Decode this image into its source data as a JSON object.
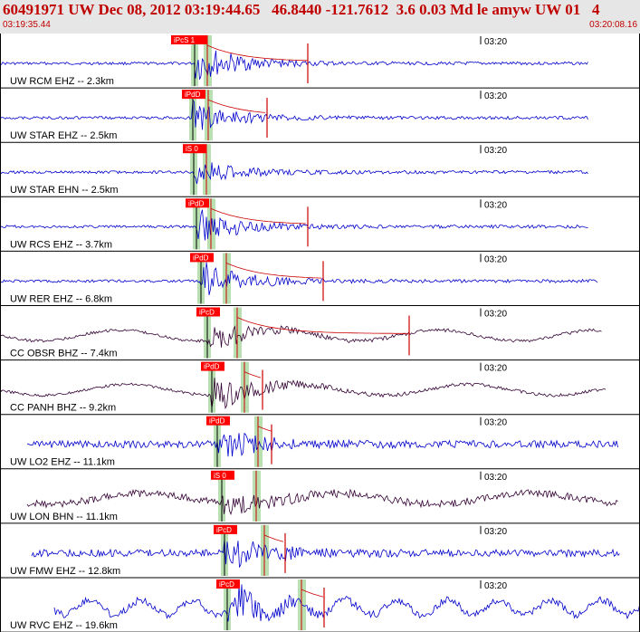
{
  "header": {
    "title": "60491971 UW Dec 08, 2012 03:19:44.65   46.8440 -121.7612  3.6 0.03 Md le amyw UW 01   4",
    "start_time": "03:19:35.44",
    "end_time": "03:20:08.16"
  },
  "colors": {
    "header_bg": "#e6e6e6",
    "header_text": "#c00000",
    "trace_short_period": "#0000cc",
    "trace_broadband": "#330033",
    "pick_box": "#ff0000",
    "window_band": "#b8e0b0",
    "coda_fit": "#cc0000"
  },
  "minute_label": "03:20",
  "traces": [
    {
      "label": "UW RCM EHZ -- 2.3km",
      "pick": "iPcS 1",
      "kind": "sp"
    },
    {
      "label": "UW STAR EHZ -- 2.5km",
      "pick": "iPdD",
      "kind": "sp"
    },
    {
      "label": "UW STAR EHN -- 2.5km",
      "pick": "iS 0",
      "kind": "sp"
    },
    {
      "label": "UW RCS EHZ -- 3.7km",
      "pick": "iPdD",
      "kind": "sp"
    },
    {
      "label": "UW RER EHZ -- 6.8km",
      "pick": "iPdD",
      "kind": "sp"
    },
    {
      "label": "CC OBSR BHZ -- 7.4km",
      "pick": "iPcD",
      "kind": "bb"
    },
    {
      "label": "CC PANH BHZ -- 9.2km",
      "pick": "iPdD",
      "kind": "bb"
    },
    {
      "label": "UW LO2 EHZ -- 11.1km",
      "pick": "iPdD",
      "kind": "sp"
    },
    {
      "label": "UW LON BHN -- 11.1km",
      "pick": "iS 0",
      "kind": "bb"
    },
    {
      "label": "UW FMW EHZ -- 12.8km",
      "pick": "iPcD",
      "kind": "sp"
    },
    {
      "label": "UW RVC EHZ -- 19.6km",
      "pick": "iPcD",
      "kind": "sp"
    }
  ]
}
